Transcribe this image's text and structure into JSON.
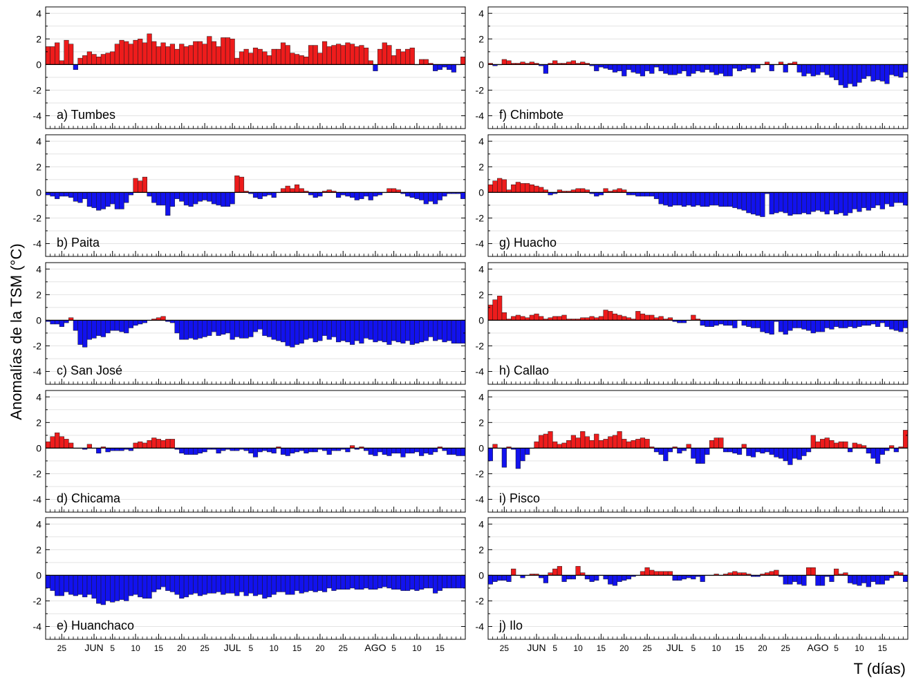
{
  "figure": {
    "ylabel": "Anomalías de la TSM (°C)",
    "xlabel": "T (días)"
  },
  "colors": {
    "positive": "#ee1c1c",
    "negative": "#1212ee",
    "frame": "#000000",
    "grid": "#e3e3e3"
  },
  "x_axis": {
    "n_days": 91,
    "ticks": [
      {
        "day": 3,
        "label": "25"
      },
      {
        "day": 10,
        "label": "JUN",
        "month": true
      },
      {
        "day": 14,
        "label": "5"
      },
      {
        "day": 19,
        "label": "10"
      },
      {
        "day": 24,
        "label": "15"
      },
      {
        "day": 29,
        "label": "20"
      },
      {
        "day": 34,
        "label": "25"
      },
      {
        "day": 40,
        "label": "JUL",
        "month": true
      },
      {
        "day": 44,
        "label": "5"
      },
      {
        "day": 49,
        "label": "10"
      },
      {
        "day": 54,
        "label": "15"
      },
      {
        "day": 59,
        "label": "20"
      },
      {
        "day": 64,
        "label": "25"
      },
      {
        "day": 71,
        "label": "AGO",
        "month": true
      },
      {
        "day": 75,
        "label": "5"
      },
      {
        "day": 80,
        "label": "10"
      },
      {
        "day": 85,
        "label": "15"
      }
    ]
  },
  "y_axis": {
    "ylim": [
      -5,
      4.5
    ],
    "ticks": [
      4,
      2,
      0,
      -2,
      -4
    ]
  },
  "chart_data": [
    {
      "type": "bar",
      "title": "a) Tumbes",
      "ylim": [
        -5,
        4.5
      ],
      "values": [
        1.4,
        1.4,
        1.7,
        0.3,
        1.9,
        1.6,
        -0.4,
        0.5,
        0.7,
        1.0,
        0.8,
        0.6,
        0.8,
        0.9,
        1.0,
        1.6,
        1.9,
        1.8,
        1.6,
        1.9,
        2.0,
        1.7,
        2.4,
        1.8,
        1.4,
        1.7,
        1.4,
        1.6,
        1.2,
        1.6,
        1.4,
        1.5,
        1.8,
        1.8,
        1.6,
        2.2,
        1.8,
        1.4,
        2.1,
        2.1,
        2.0,
        0.5,
        1.0,
        1.2,
        0.9,
        1.3,
        1.2,
        1.0,
        0.7,
        1.2,
        1.2,
        1.7,
        1.5,
        0.9,
        0.8,
        0.7,
        0.6,
        1.5,
        1.5,
        0.9,
        1.8,
        1.4,
        1.5,
        1.6,
        1.5,
        1.7,
        1.6,
        1.4,
        1.5,
        1.3,
        0.3,
        -0.5,
        1.2,
        1.7,
        1.5,
        0.7,
        1.2,
        1.0,
        1.2,
        1.3,
        0.0,
        0.4,
        0.4,
        0.1,
        -0.5,
        -0.4,
        -0.2,
        -0.4,
        -0.6,
        0.0,
        0.6
      ]
    },
    {
      "type": "bar",
      "title": "b) Paita",
      "ylim": [
        -5,
        4.5
      ],
      "values": [
        -0.2,
        -0.3,
        -0.5,
        -0.3,
        -0.3,
        -0.4,
        -0.7,
        -0.8,
        -0.5,
        -1.1,
        -1.2,
        -1.4,
        -1.3,
        -1.1,
        -0.9,
        -1.3,
        -1.3,
        -0.8,
        -0.2,
        1.1,
        0.9,
        1.2,
        -0.3,
        -0.8,
        -1.0,
        -1.0,
        -1.8,
        -1.1,
        -0.5,
        -0.7,
        -1.0,
        -1.1,
        -0.9,
        -0.7,
        -0.6,
        -0.7,
        -0.9,
        -1.0,
        -1.1,
        -1.1,
        -0.9,
        1.3,
        1.2,
        0.1,
        -0.1,
        -0.4,
        -0.5,
        -0.3,
        -0.2,
        -0.4,
        0.0,
        0.3,
        0.5,
        0.3,
        0.6,
        0.3,
        0.1,
        -0.2,
        -0.4,
        -0.3,
        0.1,
        0.2,
        0.1,
        -0.4,
        -0.2,
        -0.3,
        -0.4,
        -0.6,
        -0.5,
        -0.3,
        -0.6,
        -0.3,
        -0.2,
        0.0,
        0.3,
        0.3,
        0.2,
        -0.1,
        -0.3,
        -0.4,
        -0.5,
        -0.6,
        -0.9,
        -0.7,
        -0.9,
        -0.6,
        -0.3,
        -0.1,
        -0.1,
        -0.1,
        -0.5
      ]
    },
    {
      "type": "bar",
      "title": "c) San José",
      "ylim": [
        -5,
        4.5
      ],
      "values": [
        -0.1,
        -0.3,
        -0.3,
        -0.5,
        -0.2,
        0.2,
        -0.8,
        -1.9,
        -2.1,
        -1.5,
        -1.4,
        -1.2,
        -1.3,
        -1.0,
        -0.8,
        -0.8,
        -0.9,
        -1.0,
        -0.6,
        -0.4,
        -0.3,
        -0.2,
        0.0,
        0.1,
        0.2,
        0.3,
        -0.1,
        -0.2,
        -1.0,
        -1.5,
        -1.5,
        -1.4,
        -1.5,
        -1.4,
        -1.3,
        -1.2,
        -0.9,
        -1.2,
        -1.1,
        -1.0,
        -1.5,
        -1.3,
        -1.4,
        -1.4,
        -1.3,
        -0.9,
        -0.7,
        -1.2,
        -1.3,
        -1.5,
        -1.6,
        -1.7,
        -2.0,
        -2.1,
        -1.9,
        -1.8,
        -1.5,
        -1.4,
        -1.7,
        -1.6,
        -1.2,
        -1.5,
        -1.3,
        -1.7,
        -1.6,
        -1.7,
        -1.9,
        -1.6,
        -1.8,
        -1.4,
        -1.5,
        -1.7,
        -1.6,
        -1.7,
        -1.9,
        -1.6,
        -1.7,
        -1.8,
        -1.6,
        -1.9,
        -1.8,
        -1.7,
        -1.6,
        -1.3,
        -1.6,
        -1.5,
        -1.7,
        -1.6,
        -1.8,
        -1.8,
        -1.8
      ]
    },
    {
      "type": "bar",
      "title": "d) Chicama",
      "ylim": [
        -5,
        4.5
      ],
      "values": [
        0.5,
        0.9,
        1.2,
        0.9,
        0.7,
        0.4,
        0.0,
        0.0,
        -0.1,
        0.3,
        0.0,
        -0.4,
        0.1,
        -0.3,
        -0.2,
        -0.2,
        -0.2,
        -0.1,
        -0.2,
        0.4,
        0.5,
        0.4,
        0.6,
        0.8,
        0.7,
        0.6,
        0.7,
        0.7,
        -0.1,
        -0.4,
        -0.5,
        -0.5,
        -0.5,
        -0.4,
        -0.3,
        -0.1,
        -0.1,
        -0.4,
        -0.2,
        -0.1,
        -0.2,
        -0.2,
        -0.1,
        -0.2,
        -0.4,
        -0.7,
        -0.3,
        -0.2,
        -0.3,
        -0.4,
        0.1,
        -0.5,
        -0.6,
        -0.4,
        -0.3,
        -0.2,
        -0.4,
        -0.3,
        -0.3,
        -0.1,
        -0.2,
        -0.5,
        -0.2,
        -0.2,
        -0.1,
        -0.3,
        0.2,
        -0.1,
        0.1,
        -0.2,
        -0.5,
        -0.6,
        -0.3,
        -0.5,
        -0.6,
        -0.4,
        -0.4,
        -0.7,
        -0.4,
        -0.4,
        -0.3,
        -0.6,
        -0.4,
        -0.5,
        -0.3,
        0.1,
        -0.2,
        -0.5,
        -0.5,
        -0.6,
        -0.6
      ]
    },
    {
      "type": "bar",
      "title": "e) Huanchaco",
      "ylim": [
        -5,
        4.5
      ],
      "values": [
        -1.0,
        -1.2,
        -1.6,
        -1.6,
        -1.3,
        -1.5,
        -1.6,
        -1.5,
        -1.7,
        -1.5,
        -1.8,
        -2.2,
        -2.3,
        -2.0,
        -2.1,
        -2.0,
        -1.9,
        -2.0,
        -1.6,
        -1.5,
        -1.7,
        -1.8,
        -1.8,
        -1.3,
        -1.1,
        -0.9,
        -1.2,
        -1.3,
        -1.5,
        -1.8,
        -1.7,
        -1.5,
        -1.4,
        -1.6,
        -1.5,
        -1.4,
        -1.4,
        -1.3,
        -1.5,
        -1.4,
        -1.4,
        -1.6,
        -1.3,
        -1.6,
        -1.4,
        -1.6,
        -1.5,
        -1.8,
        -1.7,
        -1.5,
        -1.3,
        -1.3,
        -1.5,
        -1.5,
        -1.2,
        -1.4,
        -1.3,
        -1.2,
        -1.3,
        -1.2,
        -1.3,
        -1.0,
        -1.2,
        -1.1,
        -1.1,
        -1.1,
        -1.0,
        -1.1,
        -1.1,
        -1.0,
        -1.1,
        -1.1,
        -1.0,
        -0.9,
        -1.0,
        -1.1,
        -1.1,
        -1.2,
        -1.2,
        -1.1,
        -1.2,
        -1.1,
        -1.0,
        -1.0,
        -1.4,
        -1.2,
        -1.0,
        -1.0,
        -1.0,
        -1.0,
        -1.0
      ]
    },
    {
      "type": "bar",
      "title": "f) Chimbote",
      "ylim": [
        -5,
        4.5
      ],
      "values": [
        0.1,
        -0.1,
        0.0,
        0.4,
        0.3,
        0.1,
        0.1,
        0.2,
        0.1,
        0.2,
        0.1,
        -0.1,
        -0.7,
        0.1,
        0.3,
        0.1,
        0.1,
        0.2,
        0.3,
        0.1,
        0.2,
        0.1,
        -0.1,
        -0.5,
        -0.2,
        -0.3,
        -0.4,
        -0.6,
        -0.5,
        -0.9,
        -0.4,
        -0.6,
        -0.7,
        -0.9,
        -0.5,
        -0.7,
        -0.2,
        -0.5,
        -0.7,
        -0.8,
        -0.8,
        -0.7,
        -0.5,
        -0.9,
        -0.7,
        -0.5,
        -0.6,
        -0.4,
        -0.6,
        -0.8,
        -0.7,
        -0.9,
        -0.9,
        -0.3,
        -0.5,
        -0.4,
        -0.3,
        -0.6,
        -0.3,
        0.0,
        0.2,
        -0.5,
        0.0,
        0.2,
        -0.6,
        0.1,
        0.2,
        -0.6,
        -0.9,
        -0.7,
        -0.9,
        -0.8,
        -0.6,
        -0.8,
        -1.0,
        -1.2,
        -1.6,
        -1.8,
        -1.5,
        -1.7,
        -1.4,
        -1.1,
        -0.9,
        -1.3,
        -1.2,
        -1.3,
        -1.5,
        -0.8,
        -0.9,
        -1.0,
        -0.6
      ]
    },
    {
      "type": "bar",
      "title": "g) Huacho",
      "ylim": [
        -5,
        4.5
      ],
      "values": [
        0.6,
        0.9,
        1.1,
        1.0,
        0.2,
        0.6,
        0.8,
        0.7,
        0.7,
        0.6,
        0.5,
        0.4,
        0.2,
        -0.2,
        -0.1,
        0.2,
        0.1,
        0.1,
        0.2,
        0.3,
        0.3,
        0.2,
        -0.1,
        -0.3,
        -0.2,
        0.3,
        0.1,
        0.2,
        0.3,
        0.2,
        -0.2,
        -0.2,
        -0.3,
        -0.3,
        -0.3,
        -0.3,
        -0.5,
        -0.9,
        -1.0,
        -1.1,
        -1.0,
        -1.0,
        -1.1,
        -1.0,
        -1.1,
        -1.0,
        -1.1,
        -1.1,
        -1.0,
        -1.0,
        -1.1,
        -1.1,
        -1.1,
        -1.2,
        -1.3,
        -1.4,
        -1.6,
        -1.7,
        -1.8,
        -1.9,
        -0.1,
        -1.7,
        -1.6,
        -1.5,
        -1.6,
        -1.8,
        -1.7,
        -1.7,
        -1.6,
        -1.7,
        -1.5,
        -1.4,
        -1.5,
        -1.7,
        -1.4,
        -1.7,
        -1.6,
        -1.8,
        -1.6,
        -1.3,
        -1.5,
        -1.2,
        -1.4,
        -1.2,
        -1.0,
        -1.3,
        -0.9,
        -1.1,
        -0.8,
        -0.8,
        -1.0
      ]
    },
    {
      "type": "bar",
      "title": "h) Callao",
      "ylim": [
        -5,
        4.5
      ],
      "values": [
        1.2,
        1.6,
        1.9,
        0.6,
        0.1,
        0.3,
        0.4,
        0.3,
        0.2,
        0.4,
        0.5,
        0.3,
        0.1,
        0.2,
        0.3,
        0.3,
        0.4,
        0.1,
        0.1,
        0.1,
        0.2,
        0.2,
        0.3,
        0.2,
        0.3,
        0.8,
        0.7,
        0.5,
        0.4,
        0.3,
        0.2,
        0.1,
        0.7,
        0.5,
        0.4,
        0.4,
        0.2,
        0.3,
        0.1,
        0.2,
        -0.1,
        -0.2,
        -0.2,
        0.0,
        0.4,
        0.1,
        -0.4,
        -0.5,
        -0.5,
        -0.4,
        -0.3,
        -0.4,
        -0.4,
        -0.6,
        0.0,
        -0.4,
        -0.5,
        -0.6,
        -0.6,
        -0.9,
        -1.0,
        -1.1,
        -0.1,
        -0.9,
        -1.1,
        -0.8,
        -0.6,
        -0.6,
        -0.7,
        -0.8,
        -1.0,
        -0.9,
        -0.9,
        -0.6,
        -0.7,
        -0.5,
        -0.6,
        -0.6,
        -0.5,
        -0.6,
        -0.5,
        -0.4,
        -0.4,
        -0.3,
        -0.5,
        -0.2,
        -0.5,
        -0.7,
        -0.8,
        -0.9,
        -0.6
      ]
    },
    {
      "type": "bar",
      "title": "i) Pisco",
      "ylim": [
        -5,
        4.5
      ],
      "values": [
        -1.0,
        0.3,
        0.0,
        -1.5,
        0.1,
        -0.1,
        -1.6,
        -1.0,
        -0.5,
        0.0,
        0.5,
        1.0,
        1.1,
        1.3,
        0.5,
        0.3,
        0.4,
        0.6,
        1.0,
        0.8,
        1.3,
        0.9,
        0.6,
        1.1,
        0.6,
        0.7,
        0.9,
        1.0,
        1.3,
        0.7,
        0.5,
        0.6,
        0.7,
        0.8,
        0.7,
        0.1,
        -0.3,
        -0.5,
        -1.0,
        -0.3,
        0.1,
        -0.4,
        -0.2,
        0.3,
        -0.8,
        -1.2,
        -1.2,
        -0.5,
        0.6,
        0.8,
        0.8,
        -0.3,
        -0.3,
        -0.4,
        -0.5,
        0.3,
        -0.6,
        -0.7,
        -0.3,
        -0.4,
        -0.3,
        -0.5,
        -0.7,
        -0.8,
        -1.0,
        -1.3,
        -0.8,
        -0.9,
        -0.6,
        -0.3,
        1.0,
        0.5,
        0.7,
        0.8,
        0.6,
        0.4,
        0.5,
        0.5,
        -0.3,
        0.4,
        0.3,
        0.2,
        -0.4,
        -0.8,
        -1.2,
        -0.5,
        -0.2,
        0.2,
        -0.3,
        0.1,
        1.4
      ]
    },
    {
      "type": "bar",
      "title": "j) Ilo",
      "ylim": [
        -5,
        4.5
      ],
      "values": [
        -0.7,
        -0.5,
        -0.4,
        -0.4,
        -0.5,
        0.5,
        0.0,
        -0.2,
        0.0,
        0.1,
        0.1,
        -0.2,
        -0.6,
        0.2,
        0.5,
        0.7,
        -0.5,
        -0.3,
        -0.3,
        0.7,
        0.2,
        -0.3,
        -0.5,
        -0.4,
        0.0,
        -0.3,
        -0.7,
        -0.8,
        -0.5,
        -0.4,
        -0.3,
        -0.1,
        0.0,
        0.3,
        0.6,
        0.4,
        0.3,
        0.3,
        0.3,
        0.3,
        -0.4,
        -0.4,
        -0.3,
        -0.2,
        -0.3,
        -0.1,
        -0.5,
        0.0,
        0.0,
        0.1,
        0.0,
        0.1,
        0.2,
        0.3,
        0.2,
        0.2,
        0.1,
        -0.1,
        -0.1,
        0.1,
        0.2,
        0.3,
        0.4,
        -0.1,
        -0.7,
        -0.7,
        -0.5,
        -0.7,
        -0.8,
        0.6,
        0.6,
        -0.8,
        -0.8,
        -0.1,
        -0.5,
        0.5,
        0.1,
        0.2,
        -0.6,
        -0.7,
        -0.8,
        -0.6,
        -0.9,
        -0.5,
        -0.7,
        -0.7,
        -0.4,
        -0.2,
        0.3,
        0.2,
        -0.5
      ]
    }
  ]
}
